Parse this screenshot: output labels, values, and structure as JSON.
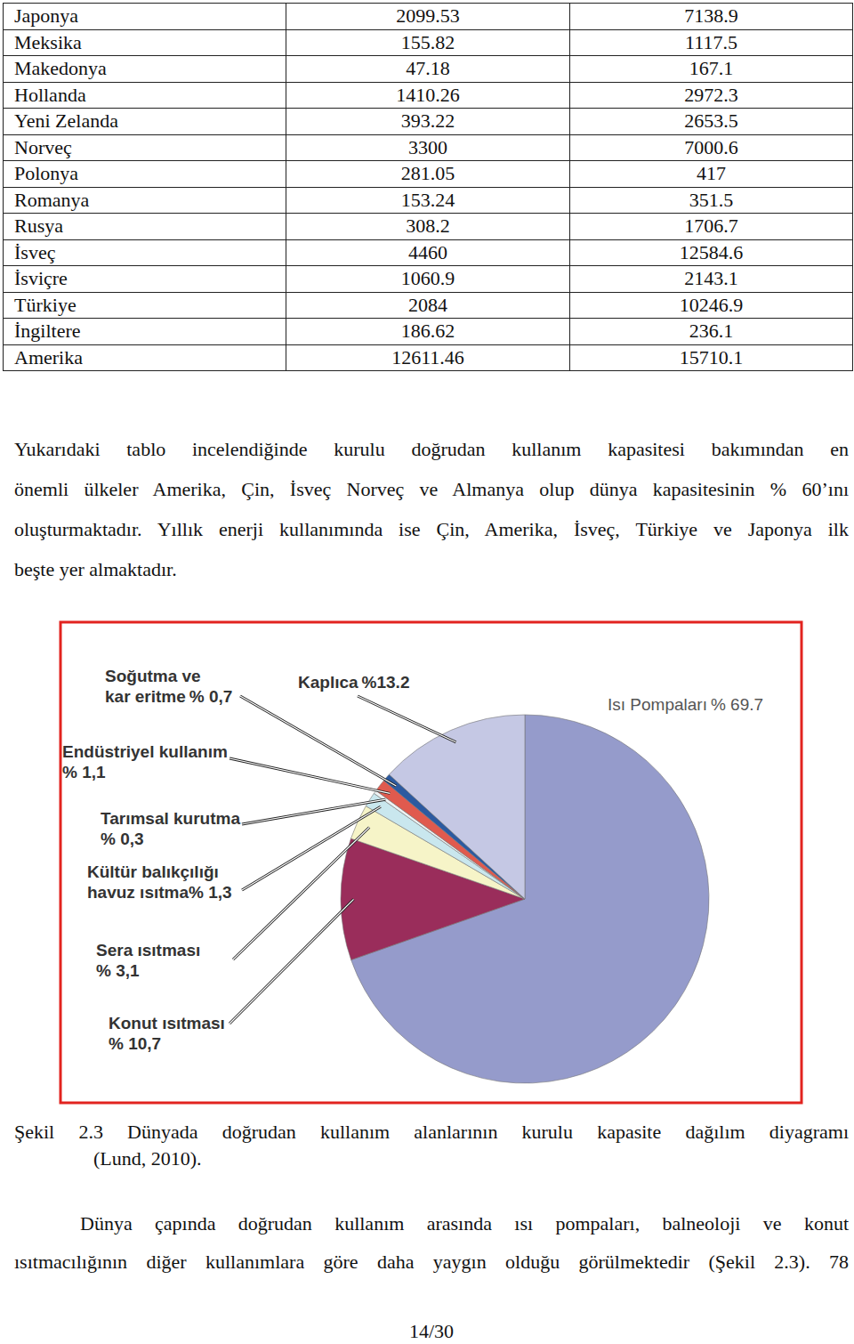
{
  "table": {
    "rows": [
      [
        "Japonya",
        "2099.53",
        "7138.9"
      ],
      [
        "Meksika",
        "155.82",
        "1117.5"
      ],
      [
        "Makedonya",
        "47.18",
        "167.1"
      ],
      [
        "Hollanda",
        "1410.26",
        "2972.3"
      ],
      [
        "Yeni Zelanda",
        "393.22",
        "2653.5"
      ],
      [
        "Norveç",
        "3300",
        "7000.6"
      ],
      [
        "Polonya",
        "281.05",
        "417"
      ],
      [
        "Romanya",
        "153.24",
        "351.5"
      ],
      [
        "Rusya",
        "308.2",
        "1706.7"
      ],
      [
        "İsveç",
        "4460",
        "12584.6"
      ],
      [
        "İsviçre",
        "1060.9",
        "2143.1"
      ],
      [
        "Türkiye",
        "2084",
        "10246.9"
      ],
      [
        "İngiltere",
        "186.62",
        "236.1"
      ],
      [
        "Amerika",
        "12611.46",
        "15710.1"
      ]
    ]
  },
  "paragraph_1": [
    "Yukarıdaki tablo incelendiğinde kurulu doğrudan kullanım kapasitesi bakımından en",
    "önemli ülkeler Amerika, Çin, İsveç Norveç ve Almanya olup dünya kapasitesinin % 60’ını",
    "oluşturmaktadır. Yıllık enerji kullanımında ise Çin, Amerika, İsveç, Türkiye ve Japonya ilk",
    "beşte yer almaktadır."
  ],
  "chart_data": {
    "type": "pie",
    "categories": [
      "Isı Pompaları",
      "Konut ısıtması",
      "Sera ısıtması",
      "Kültür balıkçılığı havuz ısıtma",
      "Tarımsal kurutma",
      "Endüstriyel kullanım",
      "Soğutma ve kar eritme",
      "Kaplıca"
    ],
    "values": [
      69.7,
      10.7,
      3.1,
      1.3,
      0.3,
      1.1,
      0.7,
      13.2
    ],
    "value_labels": [
      "% 69.7",
      "% 10,7",
      "% 3,1",
      "% 1,3",
      "% 0,3",
      "% 1,1",
      "% 0,7",
      "%13.2"
    ],
    "colors": [
      "#959bcb",
      "#9a2d5b",
      "#f6f4c8",
      "#c9e7ee",
      "#eef3f4",
      "#e05a4e",
      "#2c5aa0",
      "#c5c8e4"
    ],
    "data_labels": true
  },
  "caption": [
    "Şekil 2.3 Dünyada doğrudan kullanım alanlarının kurulu kapasite dağılım diyagramı",
    "(Lund, 2010)."
  ],
  "paragraph_2": [
    "Dünya çapında doğrudan kullanım arasında ısı pompaları, balneoloji ve konut",
    "ısıtmacılığının diğer kullanımlara göre daha yaygın olduğu görülmektedir (Şekil 2.3). 78"
  ],
  "page_number": "14/30"
}
